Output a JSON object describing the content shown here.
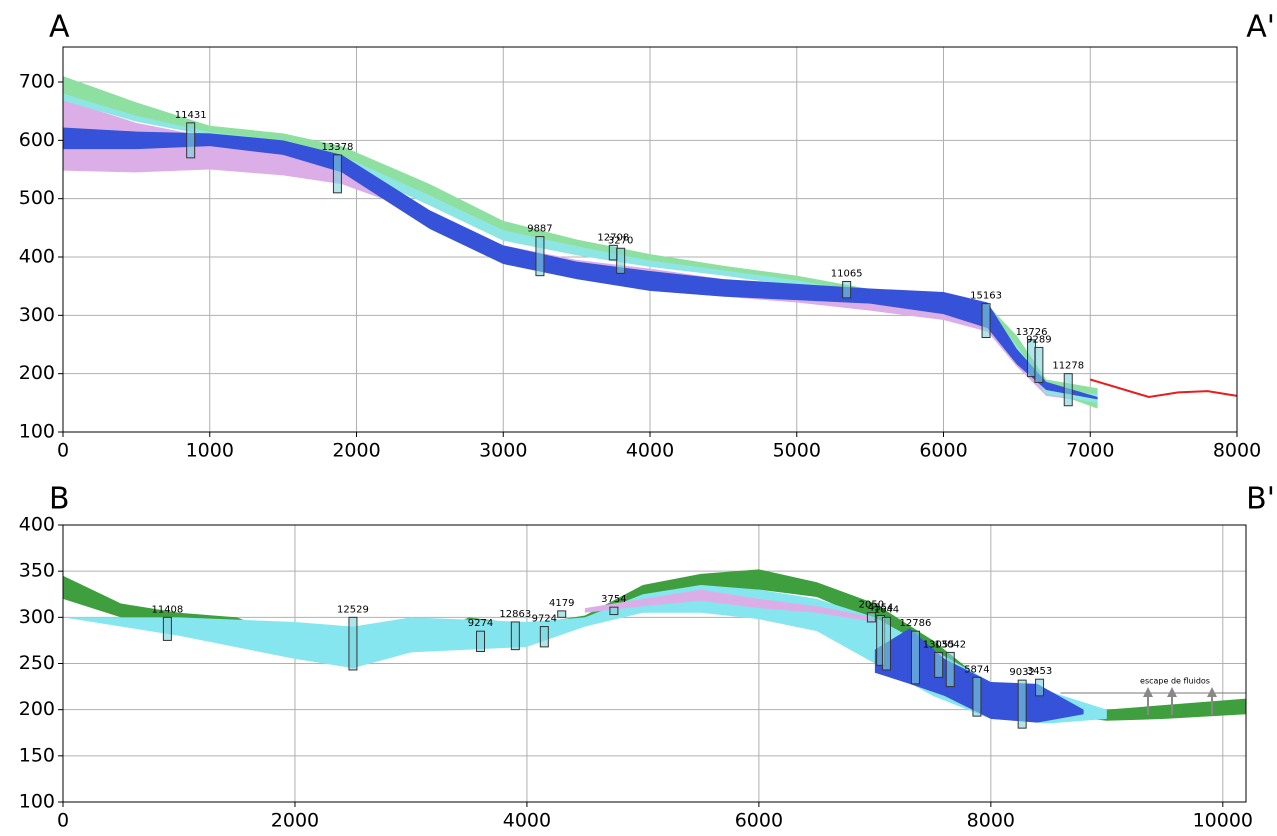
{
  "chart_data": [
    {
      "type": "cross-section",
      "left_label": "A",
      "right_label": "A'",
      "xlim": [
        0,
        8000
      ],
      "ylim": [
        100,
        760
      ],
      "xticks": [
        0,
        1000,
        2000,
        3000,
        4000,
        5000,
        6000,
        7000,
        8000
      ],
      "yticks": [
        100,
        200,
        300,
        400,
        500,
        600,
        700
      ],
      "grid": true,
      "layers": [
        {
          "color": "#dcaee8",
          "x": [
            0,
            500,
            1000,
            1500,
            1900,
            2500,
            3000,
            3500,
            4000,
            4500,
            5000,
            5500,
            6000,
            6300,
            6500,
            6700,
            7050
          ],
          "top": [
            670,
            630,
            605,
            590,
            555,
            480,
            420,
            395,
            380,
            362,
            348,
            328,
            312,
            298,
            232,
            168,
            152
          ],
          "bottom": [
            548,
            545,
            550,
            540,
            525,
            470,
            410,
            362,
            342,
            332,
            322,
            308,
            292,
            272,
            212,
            162,
            150
          ]
        },
        {
          "color": "#8de0a0",
          "x": [
            0,
            500,
            1000,
            1500,
            1900,
            2500,
            3000,
            3500,
            4000,
            4500,
            5000,
            5500,
            6000,
            6300,
            6500,
            6700,
            7050
          ],
          "top": [
            710,
            665,
            625,
            612,
            590,
            525,
            462,
            430,
            405,
            385,
            368,
            345,
            332,
            318,
            265,
            190,
            175
          ],
          "bottom": [
            680,
            640,
            612,
            598,
            572,
            505,
            445,
            418,
            393,
            376,
            358,
            336,
            322,
            306,
            245,
            172,
            140
          ]
        },
        {
          "color": "#8ee6e4",
          "x": [
            0,
            500,
            1000,
            1500,
            1900,
            2500,
            3000,
            3500,
            4000,
            4500,
            5000,
            5500,
            6000,
            6300,
            6500,
            6700,
            7050
          ],
          "top": [
            680,
            642,
            614,
            600,
            574,
            505,
            446,
            418,
            394,
            377,
            360,
            338,
            324,
            308,
            248,
            175,
            165
          ],
          "bottom": [
            668,
            632,
            608,
            592,
            558,
            488,
            428,
            403,
            383,
            368,
            350,
            330,
            316,
            298,
            232,
            165,
            150
          ]
        },
        {
          "color": "#3552d8",
          "x": [
            0,
            500,
            1000,
            1500,
            1900,
            2500,
            3000,
            3500,
            4000,
            4500,
            5000,
            5500,
            6000,
            6300,
            6500,
            6700,
            7050
          ],
          "top": [
            622,
            615,
            612,
            600,
            575,
            480,
            420,
            392,
            376,
            362,
            354,
            346,
            340,
            322,
            242,
            186,
            160
          ],
          "bottom": [
            585,
            585,
            590,
            575,
            545,
            448,
            388,
            362,
            342,
            332,
            326,
            320,
            302,
            278,
            216,
            172,
            156
          ]
        }
      ],
      "profile": {
        "color": "#e81e1e",
        "x": [
          7000,
          7200,
          7400,
          7600,
          7800,
          8000
        ],
        "values": [
          190,
          175,
          160,
          168,
          170,
          162
        ]
      },
      "wells": [
        {
          "label": "11431",
          "x": 870,
          "top": 630,
          "bottom": 570
        },
        {
          "label": "13378",
          "x": 1870,
          "top": 575,
          "bottom": 510
        },
        {
          "label": "9887",
          "x": 3250,
          "top": 435,
          "bottom": 368
        },
        {
          "label": "12708",
          "x": 3750,
          "top": 420,
          "bottom": 395
        },
        {
          "label": "3270",
          "x": 3800,
          "top": 415,
          "bottom": 372
        },
        {
          "label": "11065",
          "x": 5340,
          "top": 358,
          "bottom": 330
        },
        {
          "label": "15163",
          "x": 6290,
          "top": 320,
          "bottom": 262
        },
        {
          "label": "13726",
          "x": 6600,
          "top": 258,
          "bottom": 195
        },
        {
          "label": "9289",
          "x": 6650,
          "top": 245,
          "bottom": 185
        },
        {
          "label": "11278",
          "x": 6850,
          "top": 200,
          "bottom": 145
        }
      ]
    },
    {
      "type": "cross-section",
      "left_label": "B",
      "right_label": "B'",
      "xlim": [
        0,
        10200
      ],
      "ylim": [
        100,
        400
      ],
      "xticks": [
        0,
        2000,
        4000,
        6000,
        8000,
        10000
      ],
      "yticks": [
        100,
        150,
        200,
        250,
        300,
        350,
        400
      ],
      "grid": true,
      "layers": [
        {
          "color": "#3f9f3f",
          "x": [
            0,
            500,
            1000,
            1500,
            2000,
            2500,
            3000,
            3500,
            4000,
            4500,
            5000,
            5500,
            6000,
            6500,
            7000,
            7500,
            8000,
            8500,
            9000,
            9500,
            10200
          ],
          "top": [
            345,
            315,
            305,
            300,
            275,
            255,
            270,
            300,
            292,
            302,
            335,
            347,
            352,
            338,
            315,
            275,
            225,
            205,
            200,
            205,
            212
          ],
          "bottom": [
            320,
            300,
            292,
            280,
            265,
            252,
            262,
            285,
            285,
            295,
            318,
            330,
            330,
            322,
            295,
            250,
            205,
            195,
            188,
            190,
            195
          ]
        },
        {
          "color": "#86e6f0",
          "x": [
            0,
            1000,
            2000,
            2500,
            3000,
            4000,
            4500,
            5000,
            5500,
            6000,
            6500,
            7000,
            7500,
            8000,
            8500,
            9000
          ],
          "top": [
            300,
            300,
            295,
            290,
            300,
            295,
            300,
            325,
            335,
            330,
            320,
            300,
            265,
            230,
            220,
            200
          ],
          "bottom": [
            300,
            280,
            255,
            245,
            262,
            268,
            290,
            305,
            305,
            298,
            285,
            250,
            215,
            190,
            185,
            190
          ]
        },
        {
          "color": "#dcaee8",
          "x": [
            4500,
            5000,
            5500,
            6000,
            6500,
            7000
          ],
          "top": [
            310,
            320,
            330,
            320,
            312,
            300
          ],
          "bottom": [
            305,
            312,
            318,
            310,
            305,
            295
          ]
        },
        {
          "color": "#3552d8",
          "x": [
            7000,
            7300,
            7600,
            8000,
            8400,
            8800
          ],
          "top": [
            265,
            288,
            255,
            230,
            228,
            200
          ],
          "bottom": [
            240,
            228,
            215,
            190,
            186,
            195
          ]
        }
      ],
      "reference_line": 218,
      "annotation": "escape de fluidos",
      "wells": [
        {
          "label": "11408",
          "x": 900,
          "top": 300,
          "bottom": 275
        },
        {
          "label": "12529",
          "x": 2500,
          "top": 300,
          "bottom": 243
        },
        {
          "label": "9274",
          "x": 3600,
          "top": 285,
          "bottom": 263
        },
        {
          "label": "12863",
          "x": 3900,
          "top": 295,
          "bottom": 265
        },
        {
          "label": "9724",
          "x": 4150,
          "top": 290,
          "bottom": 268
        },
        {
          "label": "4179",
          "x": 4300,
          "top": 307,
          "bottom": 300
        },
        {
          "label": "3754",
          "x": 4750,
          "top": 311,
          "bottom": 303
        },
        {
          "label": "2050",
          "x": 6970,
          "top": 305,
          "bottom": 295
        },
        {
          "label": "4354",
          "x": 7050,
          "top": 302,
          "bottom": 248
        },
        {
          "label": "1644",
          "x": 7100,
          "top": 300,
          "bottom": 243
        },
        {
          "label": "12786",
          "x": 7350,
          "top": 285,
          "bottom": 228
        },
        {
          "label": "13055",
          "x": 7550,
          "top": 262,
          "bottom": 235
        },
        {
          "label": "13042",
          "x": 7650,
          "top": 262,
          "bottom": 225
        },
        {
          "label": "5874",
          "x": 7880,
          "top": 235,
          "bottom": 193
        },
        {
          "label": "9032",
          "x": 8270,
          "top": 232,
          "bottom": 180
        },
        {
          "label": "3453",
          "x": 8420,
          "top": 233,
          "bottom": 215
        }
      ]
    }
  ]
}
